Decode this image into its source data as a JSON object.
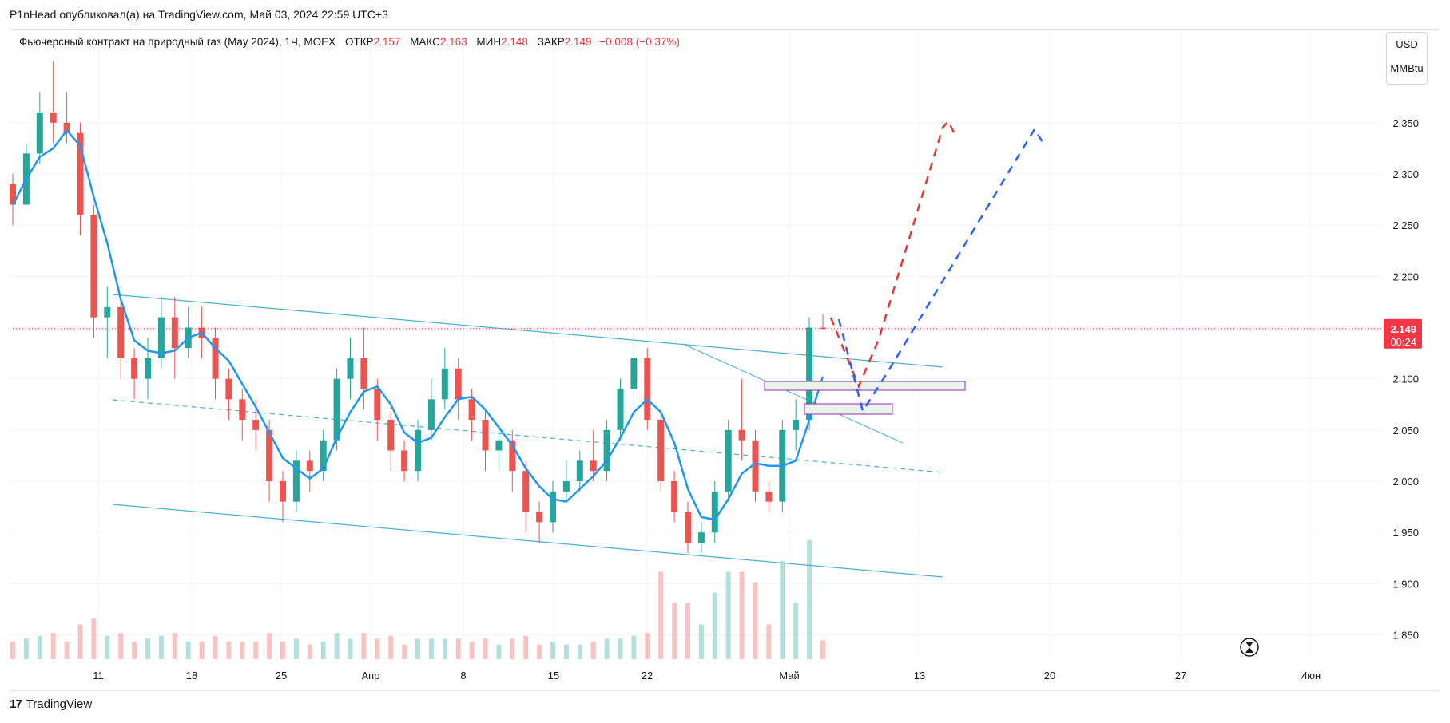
{
  "header": {
    "author": "P1nHead",
    "published_text": "опубликовал(а) на TradingView.com,",
    "date_text": "Май 03, 2024 22:59 UTC+3"
  },
  "legend": {
    "instrument": "Фьючерсный контракт на природный газ (May 2024), 1Ч, MOEX",
    "open_label": "ОТКР",
    "open_value": "2.157",
    "high_label": "МАКС",
    "high_value": "2.163",
    "low_label": "МИН",
    "low_value": "2.148",
    "close_label": "ЗАКР",
    "close_value": "2.149",
    "change": "−0.008 (−0.37%)"
  },
  "unit_box": {
    "currency": "USD",
    "unit": "MMBtu"
  },
  "price_badge": {
    "price": "2.149",
    "countdown": "00:24"
  },
  "footer": {
    "brand": "TradingView"
  },
  "colors": {
    "up": "#26a69a",
    "down": "#ef5350",
    "ma": "#2196f3",
    "channel": "#4ab0d9",
    "forecast_red": "#e53935",
    "forecast_blue": "#2962ff",
    "price_badge": "#f23645"
  },
  "chart_data": {
    "type": "candlestick",
    "ylim": [
      1.825,
      2.42
    ],
    "y_ticks": [
      "2.350",
      "2.300",
      "2.250",
      "2.200",
      "2.100",
      "2.050",
      "2.000",
      "1.950",
      "1.900",
      "1.850"
    ],
    "x_ticks": [
      "11",
      "18",
      "25",
      "Апр",
      "8",
      "15",
      "22",
      "Май",
      "13",
      "20",
      "27",
      "Июн"
    ],
    "last_price": 2.149,
    "ohlc_approx": [
      [
        2.29,
        2.3,
        2.25,
        2.27
      ],
      [
        2.27,
        2.33,
        2.27,
        2.32
      ],
      [
        2.32,
        2.38,
        2.31,
        2.36
      ],
      [
        2.36,
        2.41,
        2.33,
        2.35
      ],
      [
        2.35,
        2.38,
        2.33,
        2.34
      ],
      [
        2.34,
        2.35,
        2.24,
        2.26
      ],
      [
        2.26,
        2.27,
        2.14,
        2.16
      ],
      [
        2.16,
        2.19,
        2.12,
        2.17
      ],
      [
        2.17,
        2.18,
        2.1,
        2.12
      ],
      [
        2.12,
        2.13,
        2.08,
        2.1
      ],
      [
        2.1,
        2.14,
        2.08,
        2.12
      ],
      [
        2.12,
        2.18,
        2.11,
        2.16
      ],
      [
        2.16,
        2.18,
        2.1,
        2.13
      ],
      [
        2.13,
        2.17,
        2.12,
        2.15
      ],
      [
        2.15,
        2.17,
        2.12,
        2.14
      ],
      [
        2.14,
        2.15,
        2.08,
        2.1
      ],
      [
        2.1,
        2.11,
        2.06,
        2.08
      ],
      [
        2.08,
        2.09,
        2.04,
        2.06
      ],
      [
        2.06,
        2.08,
        2.03,
        2.05
      ],
      [
        2.05,
        2.06,
        1.98,
        2.0
      ],
      [
        2.0,
        2.01,
        1.96,
        1.98
      ],
      [
        1.98,
        2.03,
        1.97,
        2.02
      ],
      [
        2.02,
        2.03,
        1.99,
        2.01
      ],
      [
        2.01,
        2.05,
        2.0,
        2.04
      ],
      [
        2.04,
        2.11,
        2.03,
        2.1
      ],
      [
        2.1,
        2.14,
        2.08,
        2.12
      ],
      [
        2.12,
        2.15,
        2.07,
        2.09
      ],
      [
        2.09,
        2.1,
        2.04,
        2.06
      ],
      [
        2.06,
        2.08,
        2.01,
        2.03
      ],
      [
        2.03,
        2.04,
        2.0,
        2.01
      ],
      [
        2.01,
        2.06,
        2.0,
        2.05
      ],
      [
        2.05,
        2.1,
        2.04,
        2.08
      ],
      [
        2.08,
        2.13,
        2.07,
        2.11
      ],
      [
        2.11,
        2.12,
        2.06,
        2.08
      ],
      [
        2.08,
        2.09,
        2.04,
        2.06
      ],
      [
        2.06,
        2.07,
        2.01,
        2.03
      ],
      [
        2.03,
        2.05,
        2.01,
        2.04
      ],
      [
        2.04,
        2.05,
        1.99,
        2.01
      ],
      [
        2.01,
        2.02,
        1.95,
        1.97
      ],
      [
        1.97,
        1.98,
        1.94,
        1.96
      ],
      [
        1.96,
        2.0,
        1.95,
        1.99
      ],
      [
        1.99,
        2.02,
        1.98,
        2.0
      ],
      [
        2.0,
        2.03,
        1.99,
        2.02
      ],
      [
        2.02,
        2.05,
        2.0,
        2.01
      ],
      [
        2.01,
        2.06,
        2.0,
        2.05
      ],
      [
        2.05,
        2.1,
        2.04,
        2.09
      ],
      [
        2.09,
        2.14,
        2.07,
        2.12
      ],
      [
        2.12,
        2.13,
        2.05,
        2.06
      ],
      [
        2.06,
        2.07,
        1.99,
        2.0
      ],
      [
        2.0,
        2.01,
        1.96,
        1.97
      ],
      [
        1.97,
        1.98,
        1.93,
        1.94
      ],
      [
        1.94,
        1.96,
        1.93,
        1.95
      ],
      [
        1.95,
        2.0,
        1.94,
        1.99
      ],
      [
        1.99,
        2.06,
        1.98,
        2.05
      ],
      [
        2.05,
        2.1,
        2.02,
        2.04
      ],
      [
        2.04,
        2.05,
        1.98,
        1.99
      ],
      [
        1.99,
        2.0,
        1.97,
        1.98
      ],
      [
        1.98,
        2.06,
        1.97,
        2.05
      ],
      [
        2.05,
        2.08,
        2.03,
        2.06
      ],
      [
        2.06,
        2.16,
        2.05,
        2.15
      ],
      [
        2.15,
        2.163,
        2.148,
        2.149
      ]
    ]
  }
}
